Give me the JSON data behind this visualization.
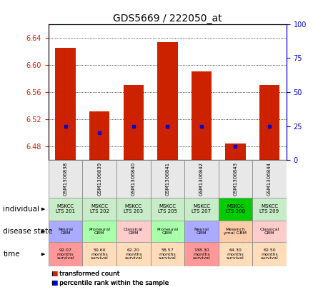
{
  "title": "GDS5669 / 222050_at",
  "samples": [
    "GSM1306838",
    "GSM1306839",
    "GSM1306840",
    "GSM1306841",
    "GSM1306842",
    "GSM1306843",
    "GSM1306844"
  ],
  "transformed_counts": [
    6.625,
    6.532,
    6.57,
    6.634,
    6.59,
    6.484,
    6.57
  ],
  "percentile_ranks": [
    25,
    20,
    25,
    25,
    25,
    10,
    25
  ],
  "ylim_left": [
    6.46,
    6.66
  ],
  "ylim_right": [
    0,
    100
  ],
  "yticks_left": [
    6.48,
    6.52,
    6.56,
    6.6,
    6.64
  ],
  "yticks_right": [
    0,
    25,
    50,
    75,
    100
  ],
  "individual_labels": [
    "MSKCC\nLTS 201",
    "MSKCC\nLTS 202",
    "MSKCC\nLTS 203",
    "MSKCC\nLTS 205",
    "MSKCC\nLTS 207",
    "MSKCC\nLTS 208",
    "MSKCC\nLTS 209"
  ],
  "individual_colors": [
    "#c8ecc8",
    "#c8ecc8",
    "#c8ecc8",
    "#c8ecc8",
    "#c8ecc8",
    "#00cc00",
    "#c8ecc8"
  ],
  "disease_state_labels": [
    "Neural\nGBM",
    "Proneural\nGBM",
    "Classical\nGBM",
    "Proneural\nGBM",
    "Neural\nGBM",
    "Mesench\nymal GBM",
    "Classical\nGBM"
  ],
  "disease_state_colors": [
    "#aaaaff",
    "#aaffaa",
    "#ffcccc",
    "#aaffaa",
    "#aaaaff",
    "#ffccaa",
    "#ffcccc"
  ],
  "time_labels": [
    "92.07\nmonths\nsurvival",
    "50.60\nmonths\nsurvival",
    "62.20\nmonths\nsurvival",
    "58.57\nmonths\nsurvival",
    "138.30\nmonths\nsurvival",
    "64.30\nmonths\nsurvival",
    "62.50\nmonths\nsurvival"
  ],
  "time_colors": [
    "#ff9999",
    "#ffddbb",
    "#ffddbb",
    "#ffddbb",
    "#ff9999",
    "#ffddbb",
    "#ffddbb"
  ],
  "bar_color": "#cc2200",
  "dot_color": "#0000cc",
  "left_axis_color": "#cc2200",
  "right_axis_color": "#0000cc"
}
